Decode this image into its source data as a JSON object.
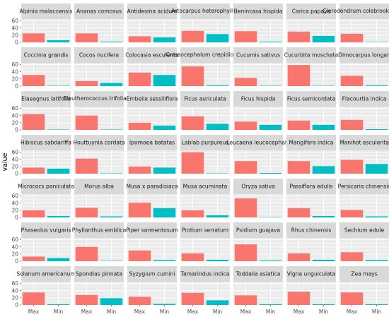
{
  "chart_data": {
    "type": "bar",
    "facet_layout": "grid",
    "ylabel": "value",
    "xlabel": "",
    "ylim": [
      0,
      65
    ],
    "yticks": [
      0,
      20,
      40,
      60
    ],
    "grid": true,
    "legend": "none",
    "categories": [
      "Max",
      "Min"
    ],
    "colors": {
      "Max": "#F8766D",
      "Min": "#00BFC4",
      "panel_bg": "#EBEBEB",
      "strip_bg": "#D9D9D9",
      "grid": "#FFFFFF"
    },
    "facets": [
      {
        "name": "Alpinia malaccensis",
        "values": [
          25,
          6
        ]
      },
      {
        "name": "Ananas comosus",
        "values": [
          25,
          2
        ]
      },
      {
        "name": "Antidesma acidum",
        "values": [
          17,
          14
        ]
      },
      {
        "name": "Artocarpus heterophyllus",
        "values": [
          32,
          23
        ]
      },
      {
        "name": "Benincasa hispida",
        "values": [
          31,
          2
        ]
      },
      {
        "name": "Carica papaya",
        "values": [
          30,
          18
        ]
      },
      {
        "name": "Clerodendrum colebrookianum",
        "values": [
          24,
          1
        ]
      },
      {
        "name": "Coccinia grandis",
        "values": [
          31,
          1
        ]
      },
      {
        "name": "Cocos nucifera",
        "values": [
          14,
          9
        ]
      },
      {
        "name": "Colocasia esculenta",
        "values": [
          38,
          31
        ]
      },
      {
        "name": "Crassocephalum crepidioides",
        "values": [
          55,
          2
        ]
      },
      {
        "name": "Cucumis sativus",
        "values": [
          23,
          1
        ]
      },
      {
        "name": "Cucurbita moschata",
        "values": [
          59,
          1
        ]
      },
      {
        "name": "Dimocarpus longan",
        "values": [
          29,
          2
        ]
      },
      {
        "name": "Elaeagnus latifolia",
        "values": [
          44,
          1
        ]
      },
      {
        "name": "Eleutherococcus trifoliatus",
        "values": [
          40,
          1
        ]
      },
      {
        "name": "Embelia sessiliflora",
        "values": [
          20,
          12
        ]
      },
      {
        "name": "Ficus auriculata",
        "values": [
          38,
          17
        ]
      },
      {
        "name": "Ficus hispida",
        "values": [
          23,
          14
        ]
      },
      {
        "name": "Ficus semicordata",
        "values": [
          26,
          14
        ]
      },
      {
        "name": "Flacourtia indica",
        "values": [
          28,
          2
        ]
      },
      {
        "name": "Hibiscus sabdariffa",
        "values": [
          17,
          14
        ]
      },
      {
        "name": "Houttuynia cordata",
        "values": [
          42,
          1
        ]
      },
      {
        "name": "Ipomoea batatas",
        "values": [
          20,
          17
        ]
      },
      {
        "name": "Lablab purpureus",
        "values": [
          60,
          1
        ]
      },
      {
        "name": "Leucaena leucocephala",
        "values": [
          35,
          2
        ]
      },
      {
        "name": "Mangifera indica",
        "values": [
          35,
          21
        ]
      },
      {
        "name": "Manihot esculenta",
        "values": [
          39,
          27
        ]
      },
      {
        "name": "Micrococs paniculata",
        "values": [
          20,
          4
        ]
      },
      {
        "name": "Morus alba",
        "values": [
          27,
          3
        ]
      },
      {
        "name": "Musa x paradisiaca",
        "values": [
          41,
          26
        ]
      },
      {
        "name": "Musa acuminata",
        "values": [
          20,
          6
        ]
      },
      {
        "name": "Oryza sativa",
        "values": [
          53,
          1
        ]
      },
      {
        "name": "Passiflora edulis",
        "values": [
          26,
          4
        ]
      },
      {
        "name": "Persicaria chinensis",
        "values": [
          21,
          3
        ]
      },
      {
        "name": "Phaseolus vulgaris",
        "values": [
          13,
          9
        ]
      },
      {
        "name": "Phyllanthus emblica",
        "values": [
          40,
          1
        ]
      },
      {
        "name": "Piper sarmentosum",
        "values": [
          30,
          3
        ]
      },
      {
        "name": "Protium serratum",
        "values": [
          22,
          4
        ]
      },
      {
        "name": "Psidium guajava",
        "values": [
          47,
          2
        ]
      },
      {
        "name": "Rhus chinensis",
        "values": [
          22,
          4
        ]
      },
      {
        "name": "Sechium edule",
        "values": [
          25,
          3
        ]
      },
      {
        "name": "Solanum americanum",
        "values": [
          35,
          2
        ]
      },
      {
        "name": "Spondias pinnata",
        "values": [
          28,
          19
        ]
      },
      {
        "name": "Syzygium cumini",
        "values": [
          23,
          3
        ]
      },
      {
        "name": "Tamarindus indica",
        "values": [
          34,
          13
        ]
      },
      {
        "name": "Toddalia asiatica",
        "values": [
          27,
          2
        ]
      },
      {
        "name": "Vigna unguiculata",
        "values": [
          37,
          2
        ]
      },
      {
        "name": "Zea mays",
        "values": [
          35,
          2
        ]
      }
    ]
  }
}
